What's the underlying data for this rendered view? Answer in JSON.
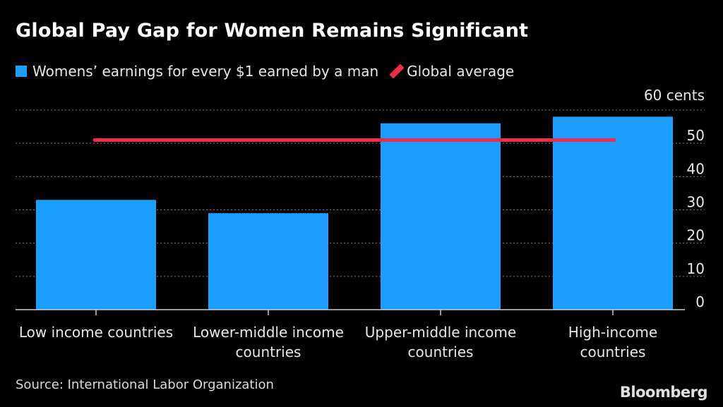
{
  "chart_data": {
    "type": "bar",
    "title": "Global Pay Gap for Women Remains Significant",
    "categories": [
      [
        "Low income countries"
      ],
      [
        "Lower-middle income",
        "countries"
      ],
      [
        "Upper-middle income",
        "countries"
      ],
      [
        "High-income",
        "countries"
      ]
    ],
    "series": [
      {
        "name": "Womens’ earnings for every $1 earned by a man",
        "color": "#1a9eff",
        "values": [
          33,
          29,
          56,
          58
        ]
      }
    ],
    "reference_line": {
      "name": "Global average",
      "color": "#ef2b48",
      "value": 51
    },
    "y_ticks": [
      "60 cents",
      "50",
      "40",
      "30",
      "20",
      "10",
      "0"
    ],
    "y_tick_values": [
      60,
      50,
      40,
      30,
      20,
      10,
      0
    ],
    "ylim": [
      0,
      60
    ],
    "y_axis_position": "right",
    "grid": true,
    "legend_position": "top-left"
  },
  "footer": {
    "source": "Source: International Labor Organization",
    "brand": "Bloomberg"
  }
}
